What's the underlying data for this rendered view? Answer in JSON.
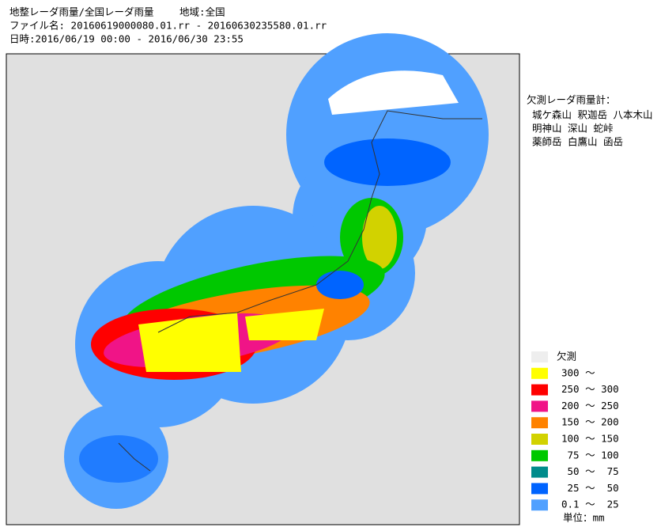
{
  "header": {
    "lines": [
      "地整レーダ雨量/全国レーダ雨量　　 地域:全国",
      "ファイル名: 20160619000080.01.rr - 20160630235580.01.rr",
      "日時:2016/06/19 00:00 - 2016/06/30 23:55"
    ]
  },
  "missing": {
    "title": "欠測レーダ雨量計：",
    "lines": [
      "城ケ森山 釈迦岳 八本木山",
      "明神山 深山 蛇峠",
      "薬師岳 白鷹山 函岳"
    ]
  },
  "legend": {
    "items": [
      {
        "label": "欠測",
        "color": "#eeeeee"
      },
      {
        "label": "300 ～",
        "color": "#ffff00"
      },
      {
        "label": "250 ～ 300",
        "color": "#ff0000"
      },
      {
        "label": "200 ～ 250",
        "color": "#f01487"
      },
      {
        "label": "150 ～ 200",
        "color": "#ff8200"
      },
      {
        "label": "100 ～ 150",
        "color": "#d2d200"
      },
      {
        "label": " 75 ～ 100",
        "color": "#00c800"
      },
      {
        "label": " 50 ～  75",
        "color": "#008c8c"
      },
      {
        "label": " 25 ～  50",
        "color": "#0064ff"
      },
      {
        "label": "0.1 ～  25",
        "color": "#50a0ff"
      }
    ],
    "unit": "単位：mm"
  }
}
